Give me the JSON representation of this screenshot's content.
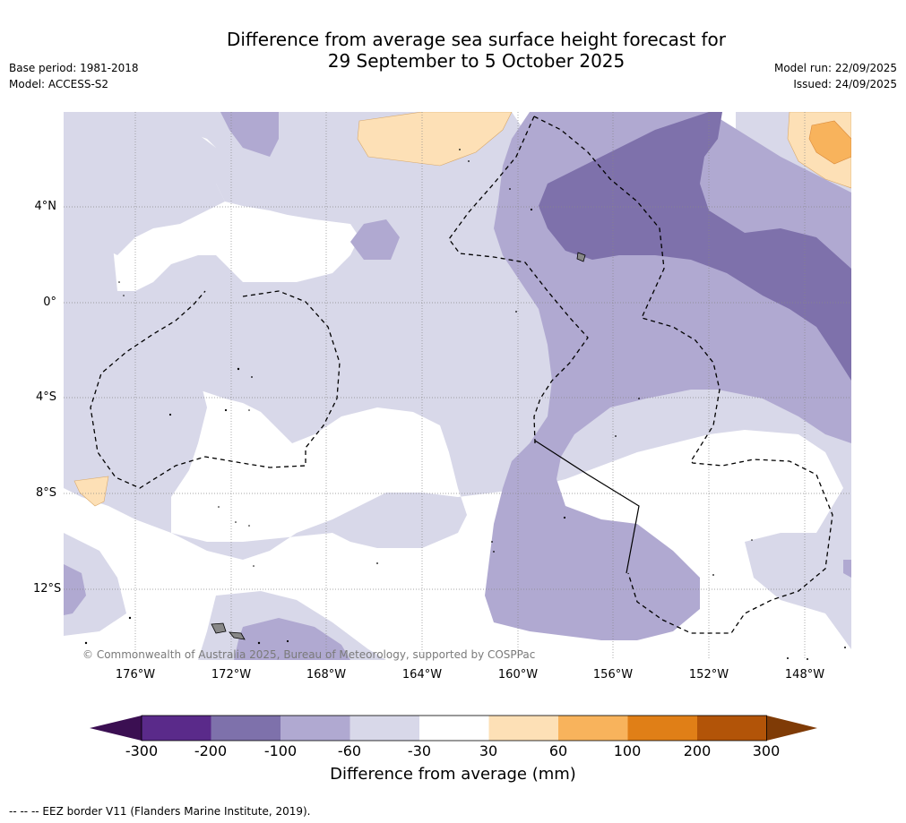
{
  "title_line1": "Difference from average sea surface height forecast for",
  "title_line2": "29 September to 5 October 2025",
  "base_period": "Base period: 1981-2018",
  "model": "Model: ACCESS-S2",
  "model_run": "Model run: 22/09/2025",
  "issued": "Issued: 24/09/2025",
  "copyright": "© Commonwealth of Australia 2025, Bureau of Meteorology, supported by COSPPac",
  "lat_labels": [
    "4°N",
    "0°",
    "4°S",
    "8°S",
    "12°S"
  ],
  "lon_labels": [
    "176°W",
    "172°W",
    "168°W",
    "164°W",
    "160°W",
    "156°W",
    "152°W",
    "148°W"
  ],
  "colorbar": {
    "title": "Difference from average (mm)",
    "ticks": [
      "-300",
      "-200",
      "-100",
      "-60",
      "-30",
      "30",
      "60",
      "100",
      "200",
      "300"
    ],
    "colors": [
      "#3b0f52",
      "#5a2a8a",
      "#7e71ab",
      "#b0a9d1",
      "#d8d8e9",
      "#ffffff",
      "#fde0b6",
      "#f8b35c",
      "#e07f17",
      "#b25408",
      "#7f3b06"
    ]
  },
  "footnote": "--  --  -- EEZ border V11 (Flanders Marine Institute, 2019)."
}
